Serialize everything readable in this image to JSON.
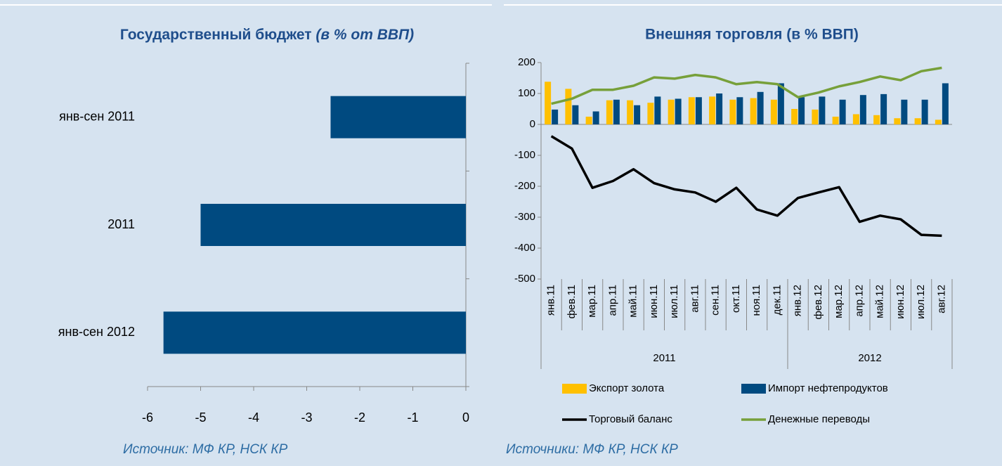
{
  "chart_data": [
    {
      "type": "hbar",
      "title": "Государственный бюджет",
      "title_note": "(в % от ВВП)",
      "categories": [
        "янв-сен 2011",
        "2011",
        "янв-сен 2012"
      ],
      "values": [
        -2.55,
        -5.0,
        -5.7
      ],
      "color": "#004A80",
      "xlim": [
        -6,
        0
      ],
      "xticks": [
        -6,
        -5,
        -4,
        -3,
        -2,
        -1,
        0
      ],
      "grid": false,
      "source": "Источник: МФ КР, НСК КР"
    },
    {
      "type": "combo",
      "title": "Внешняя торговля (в % ВВП)",
      "categories": [
        "янв.11",
        "фев.11",
        "мар.11",
        "апр.11",
        "май.11",
        "июн.11",
        "июл.11",
        "авг.11",
        "сен.11",
        "окт.11",
        "ноя.11",
        "дек.11",
        "янв.12",
        "фев.12",
        "мар.12",
        "апр.12",
        "май.12",
        "июн.12",
        "июл.12",
        "авг.12"
      ],
      "groups": [
        {
          "label": "2011",
          "span": 12
        },
        {
          "label": "2012",
          "span": 8
        }
      ],
      "series": [
        {
          "name": "Экспорт золота",
          "kind": "bar",
          "color": "#FFC000",
          "values": [
            138,
            115,
            25,
            78,
            78,
            70,
            80,
            88,
            90,
            80,
            85,
            80,
            50,
            48,
            25,
            33,
            30,
            20,
            20,
            15
          ]
        },
        {
          "name": "Импорт нефтепродуктов",
          "kind": "bar",
          "color": "#004A80",
          "values": [
            48,
            62,
            42,
            80,
            62,
            90,
            83,
            88,
            100,
            88,
            105,
            133,
            88,
            90,
            80,
            95,
            98,
            80,
            80,
            133
          ]
        },
        {
          "name": "Торговый баланс",
          "kind": "line",
          "color": "#000000",
          "values": [
            -38,
            -78,
            -205,
            -183,
            -145,
            -190,
            -210,
            -220,
            -250,
            -205,
            -275,
            -295,
            -238,
            -220,
            -203,
            -315,
            -295,
            -307,
            -357,
            -360
          ]
        },
        {
          "name": "Денежные переводы",
          "kind": "line",
          "color": "#77A03A",
          "values": [
            67,
            83,
            112,
            112,
            125,
            152,
            148,
            160,
            152,
            130,
            137,
            130,
            88,
            103,
            123,
            137,
            155,
            143,
            172,
            183
          ]
        }
      ],
      "ylim": [
        -500,
        200
      ],
      "yticks": [
        200,
        100,
        0,
        -100,
        -200,
        -300,
        -400,
        -500
      ],
      "grid": false,
      "source": "Источники: МФ КР, НСК КР"
    }
  ]
}
